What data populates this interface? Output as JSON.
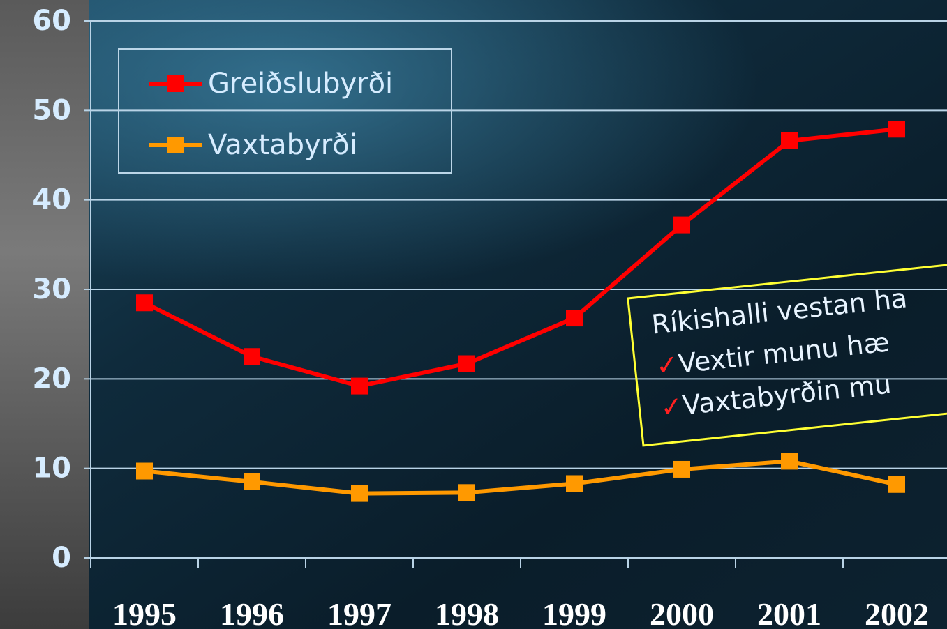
{
  "chart_data": {
    "type": "line",
    "categories": [
      "1995",
      "1996",
      "1997",
      "1998",
      "1999",
      "2000",
      "2001",
      "2002"
    ],
    "series": [
      {
        "name": "Greiðslubyrði",
        "color": "#ff0000",
        "values": [
          28.5,
          22.5,
          19.2,
          21.7,
          26.8,
          37.2,
          46.6,
          47.9
        ]
      },
      {
        "name": "Vaxtabyrði",
        "color": "#ff9900",
        "values": [
          9.7,
          8.5,
          7.2,
          7.3,
          8.3,
          9.9,
          10.8,
          8.2
        ]
      }
    ],
    "ylim": [
      0,
      60
    ],
    "yticks": [
      0,
      10,
      20,
      30,
      40,
      50,
      60
    ],
    "grid": true,
    "legend": "upper left",
    "annotation": {
      "lines": [
        {
          "text": "Ríkishalli vestan ha"
        },
        {
          "check": "✓",
          "text": "Vextir munu hæ"
        },
        {
          "check": "✓",
          "text": "Vaxtabyrðin mu"
        }
      ]
    }
  }
}
